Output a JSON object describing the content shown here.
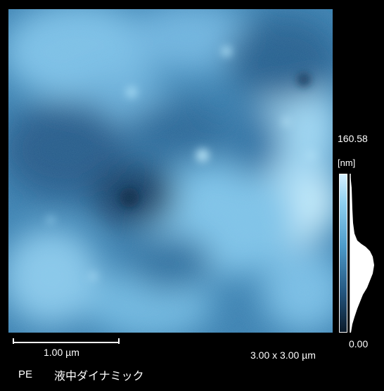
{
  "scale": {
    "max_value": "160.58",
    "unit": "[nm]",
    "min_value": "0.00"
  },
  "scalebar": {
    "label": "1.00 µm"
  },
  "image_size": "3.00 x 3.00 µm",
  "sample": {
    "name": "PE",
    "mode": "液中ダイナミック"
  },
  "colors": {
    "background": "#000000",
    "surface_low": "#1b3f63",
    "surface_mid": "#3f86b6",
    "surface_high": "#cdeeff"
  }
}
